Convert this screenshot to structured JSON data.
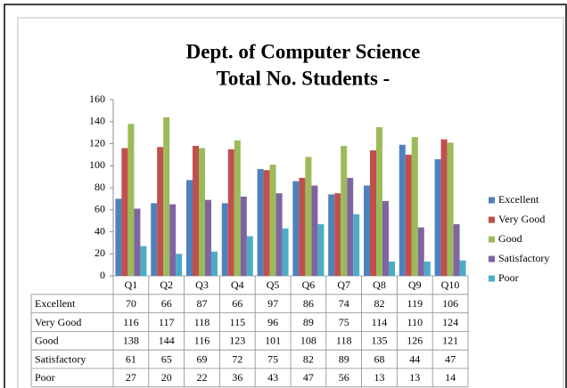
{
  "chart_data": {
    "type": "bar",
    "title": [
      "Dept. of Computer Science",
      "Total No. Students -"
    ],
    "categories": [
      "Q1",
      "Q2",
      "Q3",
      "Q4",
      "Q5",
      "Q6",
      "Q7",
      "Q8",
      "Q9",
      "Q10"
    ],
    "series": [
      {
        "name": "Excellent",
        "color": "#4f81bd",
        "values": [
          70,
          66,
          87,
          66,
          97,
          86,
          74,
          82,
          119,
          106
        ]
      },
      {
        "name": "Very Good",
        "color": "#c0504d",
        "values": [
          116,
          117,
          118,
          115,
          96,
          89,
          75,
          114,
          110,
          124
        ]
      },
      {
        "name": "Good",
        "color": "#9bbb59",
        "values": [
          138,
          144,
          116,
          123,
          101,
          108,
          118,
          135,
          126,
          121
        ]
      },
      {
        "name": "Satisfactory",
        "color": "#8064a2",
        "values": [
          61,
          65,
          69,
          72,
          75,
          82,
          89,
          68,
          44,
          47
        ]
      },
      {
        "name": "Poor",
        "color": "#4bacc6",
        "values": [
          27,
          20,
          22,
          36,
          43,
          47,
          56,
          13,
          13,
          14
        ]
      }
    ],
    "ylim": [
      0,
      160
    ],
    "yticks": [
      0,
      20,
      40,
      60,
      80,
      100,
      120,
      140,
      160
    ],
    "grid": false,
    "legend": "right"
  }
}
